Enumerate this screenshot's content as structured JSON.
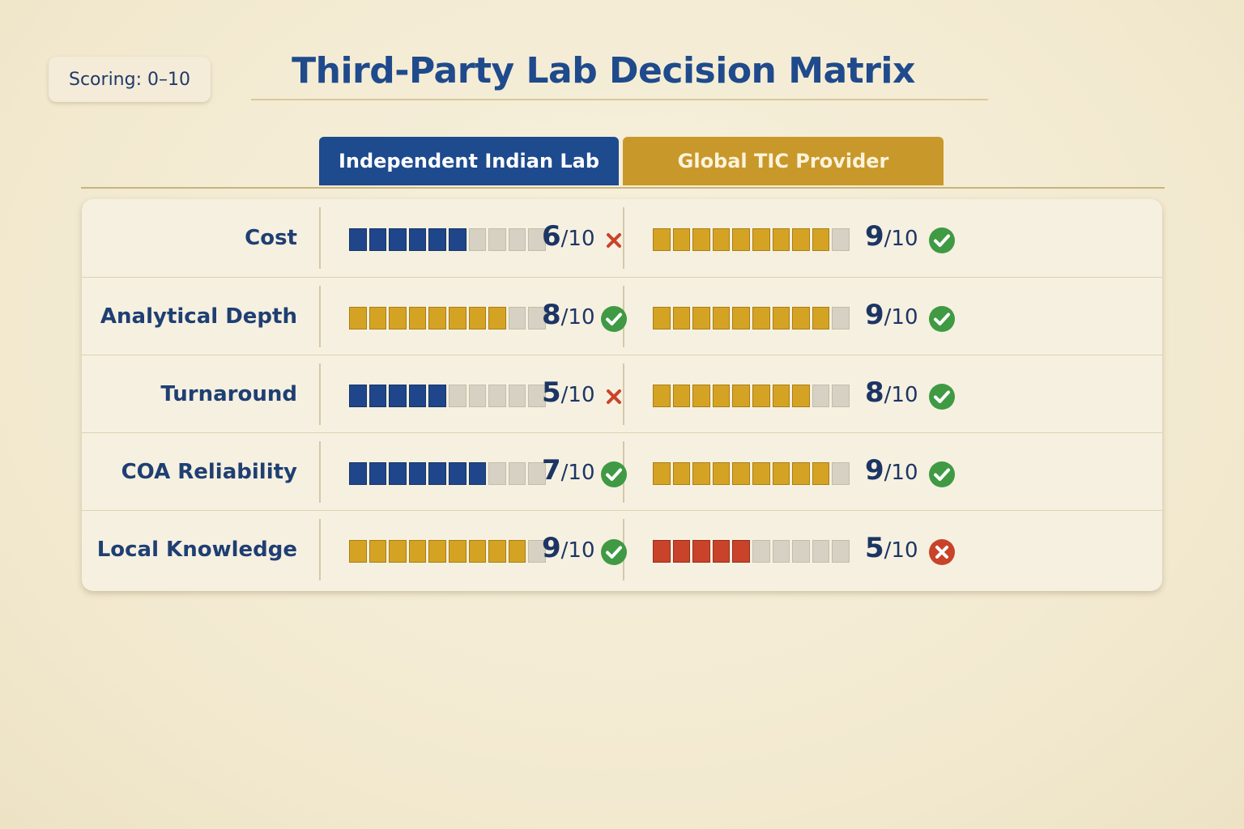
{
  "badge": {
    "label": "Scoring: 0–10"
  },
  "title": "Third-Party Lab Decision Matrix",
  "columns": [
    {
      "label": "Independent Indian Lab",
      "color": "#1e4a8e"
    },
    {
      "label": "Global TIC Provider",
      "color": "#c9982a"
    }
  ],
  "icons": {
    "pass": "check-circle-icon",
    "fail": "cross-icon",
    "fail_circle": "cross-circle-icon"
  },
  "colors": {
    "navy": "#1f468a",
    "gold": "#d5a324",
    "red": "#c8432a",
    "empty": "#d6d1c3",
    "check": "#3f9a43",
    "cross": "#c8432a"
  },
  "chart_data": {
    "type": "table",
    "title": "Third-Party Lab Decision Matrix",
    "scale": "0–10",
    "ylim": [
      0,
      10
    ],
    "series": [
      {
        "name": "Independent Indian Lab",
        "values": [
          6,
          8,
          5,
          7,
          9
        ]
      },
      {
        "name": "Global TIC Provider",
        "values": [
          9,
          9,
          8,
          9,
          5
        ]
      }
    ],
    "categories": [
      "Cost",
      "Analytical Depth",
      "Turnaround",
      "COA Reliability",
      "Local Knowledge"
    ],
    "rows": [
      {
        "criterion": "Cost",
        "lab": {
          "score": 6,
          "max": 10,
          "suffix": "/10",
          "color": "navy",
          "status": "fail"
        },
        "tic": {
          "score": 9,
          "max": 10,
          "suffix": "/10",
          "color": "gold",
          "status": "pass"
        }
      },
      {
        "criterion": "Analytical Depth",
        "lab": {
          "score": 8,
          "max": 10,
          "suffix": "/10",
          "color": "gold",
          "status": "pass"
        },
        "tic": {
          "score": 9,
          "max": 10,
          "suffix": "/10",
          "color": "gold",
          "status": "pass"
        }
      },
      {
        "criterion": "Turnaround",
        "lab": {
          "score": 5,
          "max": 10,
          "suffix": "/10",
          "color": "navy",
          "status": "fail"
        },
        "tic": {
          "score": 8,
          "max": 10,
          "suffix": "/10",
          "color": "gold",
          "status": "pass"
        }
      },
      {
        "criterion": "COA Reliability",
        "lab": {
          "score": 7,
          "max": 10,
          "suffix": "/10",
          "color": "navy",
          "status": "pass"
        },
        "tic": {
          "score": 9,
          "max": 10,
          "suffix": "/10",
          "color": "gold",
          "status": "pass"
        }
      },
      {
        "criterion": "Local Knowledge",
        "lab": {
          "score": 9,
          "max": 10,
          "suffix": "/10",
          "color": "gold",
          "status": "pass"
        },
        "tic": {
          "score": 5,
          "max": 10,
          "suffix": "/10",
          "color": "red",
          "status": "fail_circle"
        }
      }
    ]
  }
}
